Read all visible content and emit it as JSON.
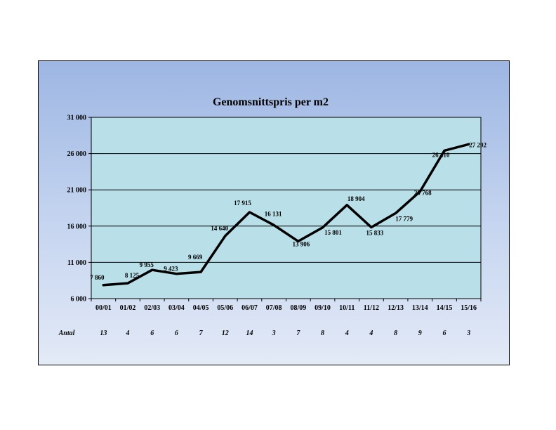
{
  "chart_data": {
    "type": "line",
    "title": "Genomsnittspris per m2",
    "categories": [
      "00/01",
      "01/02",
      "02/03",
      "03/04",
      "04/05",
      "05/06",
      "06/07",
      "07/08",
      "08/09",
      "09/10",
      "10/11",
      "11/12",
      "12/13",
      "13/14",
      "14/15",
      "15/16"
    ],
    "series": [
      {
        "values": [
          7860,
          8125,
          9955,
          9423,
          9669,
          14640,
          17915,
          16131,
          13906,
          15801,
          18904,
          15833,
          17779,
          20768,
          26410,
          27292
        ]
      }
    ],
    "data_labels": [
      "7 860",
      "8 125",
      "9 955",
      "9 423",
      "9 669",
      "14 640",
      "17 915",
      "16 131",
      "13 906",
      "15 801",
      "18 904",
      "15 833",
      "17 779",
      "20 768",
      "26 410",
      "27 292"
    ],
    "ylim": [
      6000,
      31000
    ],
    "yticks": [
      6000,
      11000,
      16000,
      21000,
      26000,
      31000
    ],
    "ytick_labels": [
      "6 000",
      "11 000",
      "16 000",
      "21 000",
      "26 000",
      "31 000"
    ],
    "grid": true,
    "plot_background": "#b9dfe8",
    "line_color": "#000000",
    "count_row": {
      "label": "Antal",
      "values": [
        "13",
        "4",
        "6",
        "6",
        "7",
        "12",
        "14",
        "3",
        "7",
        "8",
        "4",
        "4",
        "8",
        "9",
        "6",
        "3"
      ]
    }
  }
}
